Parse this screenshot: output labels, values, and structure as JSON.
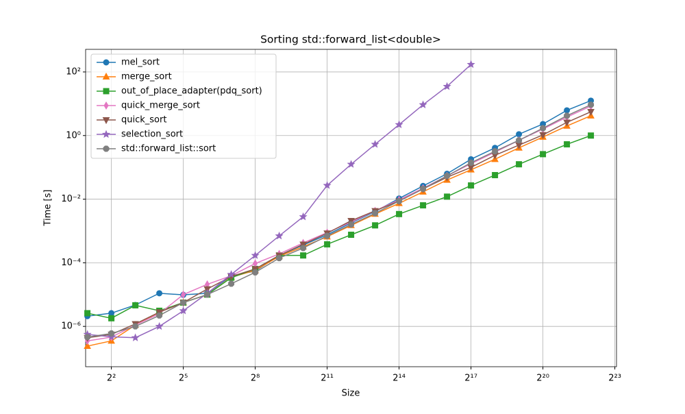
{
  "chart_data": {
    "type": "line",
    "title": "Sorting std::forward_list<double>",
    "xlabel": "Size",
    "ylabel": "Time [s]",
    "xscale": "log",
    "yscale": "log",
    "grid": true,
    "legend_loc": "upper left",
    "xlim": [
      1.9,
      8800000
    ],
    "ylim": [
      5.4e-08,
      513
    ],
    "xticks": [
      {
        "value": 4,
        "label": "2²"
      },
      {
        "value": 32,
        "label": "2⁵"
      },
      {
        "value": 256,
        "label": "2⁸"
      },
      {
        "value": 2048,
        "label": "2¹¹"
      },
      {
        "value": 16384,
        "label": "2¹⁴"
      },
      {
        "value": 131072,
        "label": "2¹⁷"
      },
      {
        "value": 1048576,
        "label": "2²⁰"
      },
      {
        "value": 8388608,
        "label": "2²³"
      }
    ],
    "yticks": [
      {
        "value": 1e-06,
        "label": "10⁻⁶"
      },
      {
        "value": 0.0001,
        "label": "10⁻⁴"
      },
      {
        "value": 0.01,
        "label": "10⁻²"
      },
      {
        "value": 1,
        "label": "10⁰"
      },
      {
        "value": 100,
        "label": "10²"
      }
    ],
    "x": [
      2,
      4,
      8,
      16,
      32,
      64,
      128,
      256,
      512,
      1024,
      2048,
      4096,
      8192,
      16384,
      32768,
      65536,
      131072,
      262144,
      524288,
      1048576,
      2097152,
      4194304
    ],
    "series": [
      {
        "name": "mel_sort",
        "color": "#1f77b4",
        "marker": "o",
        "values": [
          2.1e-06,
          2.6e-06,
          4.7e-06,
          1.1e-05,
          9.8e-06,
          1.1e-05,
          3.9e-05,
          5.5e-05,
          0.00017,
          0.00036,
          0.00076,
          0.0018,
          0.0041,
          0.0105,
          0.026,
          0.063,
          0.18,
          0.41,
          1.1,
          2.3,
          6.2,
          12.5
        ]
      },
      {
        "name": "merge_sort",
        "color": "#ff7f0e",
        "marker": "^",
        "values": [
          2.4e-07,
          3.5e-07,
          1.1e-06,
          2.8e-06,
          5.6e-06,
          1e-05,
          3.5e-05,
          5.8e-05,
          0.00016,
          0.00032,
          0.00066,
          0.0015,
          0.0034,
          0.0074,
          0.017,
          0.04,
          0.084,
          0.18,
          0.41,
          0.9,
          2.0,
          4.2
        ]
      },
      {
        "name": "out_of_place_adapter(pdq_sort)",
        "color": "#2ca02c",
        "marker": "s",
        "values": [
          2.6e-06,
          1.8e-06,
          4.6e-06,
          3.1e-06,
          5.6e-06,
          1e-05,
          3.4e-05,
          6.4e-05,
          0.00017,
          0.00017,
          0.00038,
          0.00076,
          0.0015,
          0.0034,
          0.0064,
          0.012,
          0.027,
          0.057,
          0.125,
          0.26,
          0.53,
          1.0
        ]
      },
      {
        "name": "quick_merge_sort",
        "color": "#e377c2",
        "marker": "d",
        "values": [
          3.5e-07,
          4.6e-07,
          1.1e-06,
          2.5e-06,
          1e-05,
          2.1e-05,
          3.9e-05,
          9.5e-05,
          0.00019,
          0.00042,
          0.00089,
          0.0019,
          0.0043,
          0.0095,
          0.022,
          0.054,
          0.13,
          0.3,
          0.71,
          1.6,
          3.8,
          8.4
        ]
      },
      {
        "name": "quick_sort",
        "color": "#8c564b",
        "marker": "v",
        "values": [
          4.4e-07,
          5.6e-07,
          1.2e-06,
          2.8e-06,
          5.6e-06,
          1.5e-05,
          3.7e-05,
          6.4e-05,
          0.00017,
          0.00038,
          0.00085,
          0.0021,
          0.0043,
          0.0087,
          0.021,
          0.049,
          0.1,
          0.24,
          0.5,
          1.05,
          2.6,
          5.6
        ]
      },
      {
        "name": "selection_sort",
        "color": "#9467bd",
        "marker": "*",
        "values": [
          5.6e-07,
          4.7e-07,
          4.4e-07,
          1e-06,
          3.1e-06,
          1.1e-05,
          4.3e-05,
          0.00017,
          0.0007,
          0.0028,
          0.027,
          0.125,
          0.53,
          2.2,
          9.3,
          35,
          172,
          null,
          null,
          null,
          null,
          null
        ]
      },
      {
        "name": "std::forward_list::sort",
        "color": "#7f7f7f",
        "marker": "8",
        "values": [
          4.6e-07,
          6e-07,
          1e-06,
          2.2e-06,
          5.6e-06,
          1e-05,
          2.2e-05,
          5e-05,
          0.00014,
          0.00029,
          0.0007,
          0.0016,
          0.0036,
          0.0087,
          0.021,
          0.054,
          0.14,
          0.32,
          0.71,
          1.7,
          4.2,
          9.3
        ]
      }
    ]
  }
}
